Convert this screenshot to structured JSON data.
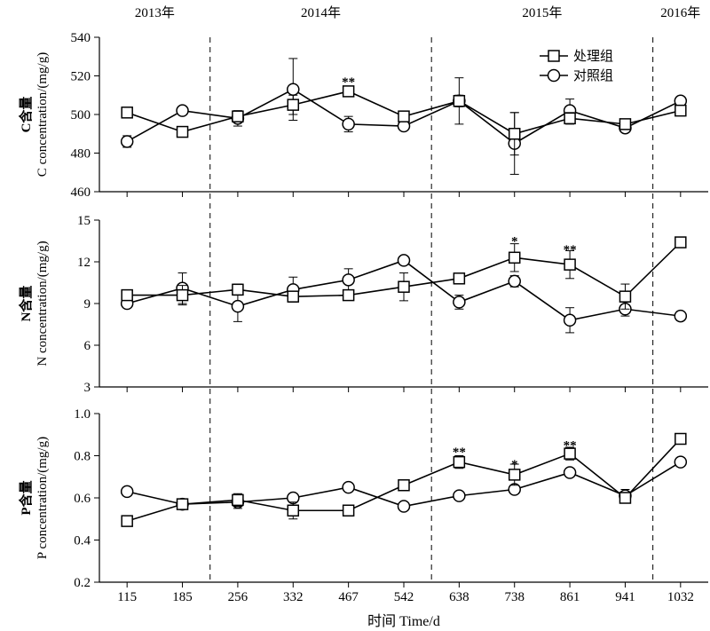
{
  "chart_data": {
    "type": "line",
    "years": [
      "2013年",
      "2014年",
      "2015年",
      "2016年"
    ],
    "x": [
      115,
      185,
      256,
      332,
      467,
      542,
      638,
      738,
      861,
      941,
      1032
    ],
    "xlabel": "时间 Time/d",
    "legend": [
      "处理组",
      "对照组"
    ],
    "panels": [
      {
        "key": "C",
        "ylabel_zh": "C含量",
        "ylabel_en": "C concentration/(mg/g)",
        "ylim": [
          460,
          540
        ],
        "yticks": [
          460,
          480,
          500,
          520,
          540
        ],
        "series": [
          {
            "name": "处理组",
            "marker": "square",
            "values": [
              501,
              491,
              499,
              505,
              512,
              499,
              507,
              490,
              498,
              495,
              502
            ],
            "err": [
              2,
              1.5,
              2,
              5,
              2,
              2,
              3,
              11,
              3,
              2,
              2
            ]
          },
          {
            "name": "对照组",
            "marker": "circle",
            "values": [
              486,
              502,
              498,
              513,
              495,
              494,
              507,
              485,
              502,
              493,
              507
            ],
            "err": [
              3,
              2,
              4,
              16,
              4,
              2,
              12,
              16,
              6,
              2,
              2
            ]
          }
        ],
        "annotations": [
          {
            "x": 467,
            "text": "**",
            "y": 517
          }
        ]
      },
      {
        "key": "N",
        "ylabel_zh": "N含量",
        "ylabel_en": "N concentration/(mg/g)",
        "ylim": [
          3,
          15
        ],
        "yticks": [
          3,
          6,
          9,
          12,
          15
        ],
        "series": [
          {
            "name": "处理组",
            "marker": "square",
            "values": [
              9.6,
              9.6,
              10.0,
              9.5,
              9.6,
              10.2,
              10.8,
              12.3,
              11.8,
              9.5,
              13.4
            ],
            "err": [
              0.3,
              0.7,
              0.4,
              0.3,
              0.2,
              1.0,
              0.3,
              1.0,
              1.0,
              0.9,
              0.3
            ]
          },
          {
            "name": "对照组",
            "marker": "circle",
            "values": [
              9.0,
              10.1,
              8.8,
              10.0,
              10.7,
              12.1,
              9.1,
              10.6,
              7.8,
              8.6,
              8.1
            ],
            "err": [
              0.3,
              1.1,
              1.1,
              0.9,
              0.8,
              0.3,
              0.5,
              0.4,
              0.9,
              0.5,
              0.3
            ]
          }
        ],
        "annotations": [
          {
            "x": 738,
            "text": "*",
            "y": 13.5
          },
          {
            "x": 861,
            "text": "**",
            "y": 12.9
          }
        ]
      },
      {
        "key": "P",
        "ylabel_zh": "P含量",
        "ylabel_en": "P concentration/(mg/g)",
        "ylim": [
          0.2,
          1.0
        ],
        "yticks": [
          0.2,
          0.4,
          0.6,
          0.8,
          1.0
        ],
        "series": [
          {
            "name": "处理组",
            "marker": "square",
            "values": [
              0.49,
              0.57,
              0.59,
              0.54,
              0.54,
              0.66,
              0.77,
              0.71,
              0.81,
              0.6,
              0.88
            ],
            "err": [
              0.01,
              0.02,
              0.03,
              0.04,
              0.01,
              0.02,
              0.03,
              0.05,
              0.03,
              0.02,
              0.02
            ]
          },
          {
            "name": "对照组",
            "marker": "circle",
            "values": [
              0.63,
              0.57,
              0.58,
              0.6,
              0.65,
              0.56,
              0.61,
              0.64,
              0.72,
              0.61,
              0.77
            ],
            "err": [
              0.02,
              0.02,
              0.03,
              0.02,
              0.02,
              0.01,
              0.01,
              0.02,
              0.02,
              0.03,
              0.02
            ]
          }
        ],
        "annotations": [
          {
            "x": 638,
            "text": "**",
            "y": 0.82
          },
          {
            "x": 738,
            "text": "*",
            "y": 0.76
          },
          {
            "x": 861,
            "text": "**",
            "y": 0.85
          }
        ]
      }
    ],
    "year_boundaries_after_index": [
      1,
      5,
      9
    ],
    "grid": false
  }
}
